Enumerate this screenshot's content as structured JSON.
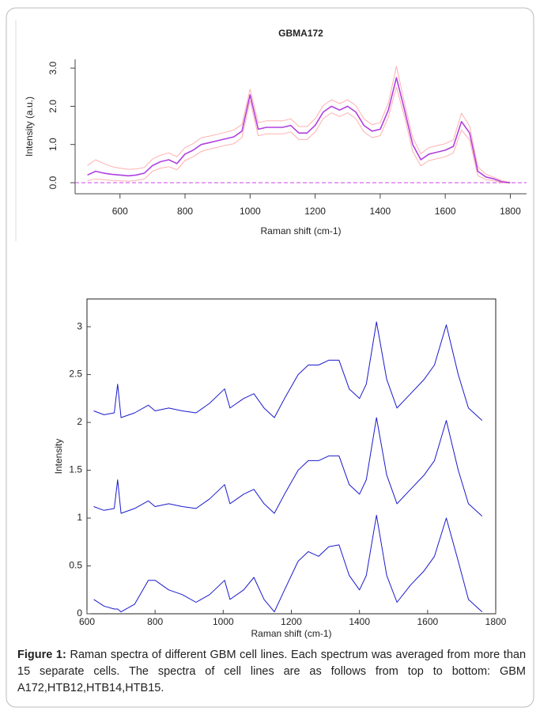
{
  "chart_data": [
    {
      "type": "line",
      "title": "GBMA172",
      "x_label": "Raman shift (cm-1)",
      "y_label": "Intensity (a.u.)",
      "x": [
        500,
        525,
        550,
        575,
        600,
        625,
        650,
        675,
        700,
        725,
        750,
        775,
        800,
        825,
        850,
        875,
        900,
        925,
        950,
        975,
        1000,
        1025,
        1050,
        1075,
        1100,
        1125,
        1150,
        1175,
        1200,
        1225,
        1250,
        1275,
        1300,
        1325,
        1350,
        1375,
        1400,
        1425,
        1450,
        1475,
        1500,
        1525,
        1550,
        1575,
        1600,
        1625,
        1650,
        1675,
        1700,
        1725,
        1750,
        1775,
        1800
      ],
      "series": [
        {
          "color": "#ffb0b0",
          "values": [
            0.45,
            0.6,
            0.5,
            0.42,
            0.38,
            0.35,
            0.36,
            0.4,
            0.62,
            0.72,
            0.78,
            0.68,
            0.92,
            1.02,
            1.18,
            1.22,
            1.27,
            1.32,
            1.38,
            1.52,
            2.45,
            1.57,
            1.62,
            1.62,
            1.62,
            1.67,
            1.47,
            1.47,
            1.67,
            2.02,
            2.17,
            2.07,
            2.17,
            2.02,
            1.67,
            1.52,
            1.57,
            2.08,
            3.05,
            2.08,
            1.18,
            0.76,
            0.92,
            0.97,
            1.02,
            1.12,
            1.82,
            1.48,
            0.42,
            0.22,
            0.14,
            0.05,
            0.01
          ]
        },
        {
          "color": "#ffb0b0",
          "values": [
            0.05,
            0.1,
            0.08,
            0.06,
            0.05,
            0.04,
            0.06,
            0.1,
            0.3,
            0.38,
            0.42,
            0.34,
            0.58,
            0.68,
            0.82,
            0.88,
            0.93,
            0.98,
            1.02,
            1.18,
            2.15,
            1.23,
            1.28,
            1.28,
            1.28,
            1.33,
            1.13,
            1.13,
            1.33,
            1.68,
            1.83,
            1.73,
            1.83,
            1.68,
            1.33,
            1.18,
            1.23,
            1.72,
            2.5,
            1.72,
            0.82,
            0.44,
            0.58,
            0.63,
            0.68,
            0.78,
            1.38,
            1.12,
            0.18,
            0.08,
            0.05,
            0.0,
            -0.01
          ]
        },
        {
          "color": "#b040e0",
          "values": [
            0.2,
            0.3,
            0.25,
            0.22,
            0.2,
            0.18,
            0.2,
            0.25,
            0.45,
            0.55,
            0.6,
            0.5,
            0.75,
            0.85,
            1.0,
            1.05,
            1.1,
            1.15,
            1.2,
            1.35,
            2.3,
            1.4,
            1.45,
            1.45,
            1.45,
            1.5,
            1.3,
            1.3,
            1.5,
            1.85,
            2.0,
            1.9,
            2.0,
            1.85,
            1.5,
            1.35,
            1.4,
            1.9,
            2.75,
            1.9,
            1.0,
            0.6,
            0.75,
            0.8,
            0.85,
            0.95,
            1.6,
            1.3,
            0.3,
            0.15,
            0.1,
            0.02,
            0.0
          ]
        }
      ],
      "reference_line": {
        "value": 0,
        "color": "#cc44ee"
      },
      "xlim": [
        462,
        1850
      ],
      "ylim": [
        -0.29,
        3.23
      ],
      "xticks": [
        600,
        800,
        1000,
        1200,
        1400,
        1600,
        1800
      ],
      "yticks": [
        {
          "value": 0,
          "label": "0.0"
        },
        {
          "value": 1,
          "label": "1.0"
        },
        {
          "value": 2,
          "label": "2.0"
        },
        {
          "value": 3,
          "label": "3.0"
        }
      ]
    },
    {
      "type": "line",
      "x_label": "Raman shift (cm-1)",
      "y_label": "Intensity",
      "x": [
        620,
        650,
        680,
        690,
        700,
        740,
        780,
        800,
        840,
        880,
        920,
        960,
        1004,
        1020,
        1060,
        1090,
        1120,
        1150,
        1180,
        1220,
        1250,
        1280,
        1310,
        1340,
        1370,
        1400,
        1420,
        1450,
        1480,
        1510,
        1550,
        1590,
        1620,
        1655,
        1690,
        1720,
        1760
      ],
      "series": [
        {
          "color": "#1a1acc",
          "values": [
            2.12,
            2.08,
            2.1,
            2.4,
            2.05,
            2.1,
            2.18,
            2.12,
            2.15,
            2.12,
            2.1,
            2.2,
            2.35,
            2.15,
            2.25,
            2.3,
            2.15,
            2.05,
            2.25,
            2.5,
            2.6,
            2.6,
            2.65,
            2.65,
            2.35,
            2.25,
            2.4,
            3.05,
            2.45,
            2.15,
            2.3,
            2.45,
            2.6,
            3.02,
            2.5,
            2.15,
            2.02
          ]
        },
        {
          "color": "#1a1acc",
          "values": [
            1.12,
            1.08,
            1.1,
            1.4,
            1.05,
            1.1,
            1.18,
            1.12,
            1.15,
            1.12,
            1.1,
            1.2,
            1.35,
            1.15,
            1.25,
            1.3,
            1.15,
            1.05,
            1.25,
            1.5,
            1.6,
            1.6,
            1.65,
            1.65,
            1.35,
            1.25,
            1.4,
            2.05,
            1.45,
            1.15,
            1.3,
            1.45,
            1.6,
            2.02,
            1.5,
            1.15,
            1.02
          ]
        },
        {
          "color": "#1a1acc",
          "values": [
            0.15,
            0.08,
            0.05,
            0.05,
            0.02,
            0.1,
            0.35,
            0.35,
            0.25,
            0.2,
            0.12,
            0.2,
            0.35,
            0.15,
            0.25,
            0.38,
            0.15,
            0.02,
            0.25,
            0.55,
            0.65,
            0.6,
            0.7,
            0.72,
            0.4,
            0.25,
            0.4,
            1.03,
            0.4,
            0.12,
            0.3,
            0.45,
            0.6,
            1.0,
            0.55,
            0.15,
            0.02
          ]
        }
      ],
      "xlim": [
        600,
        1800
      ],
      "ylim": [
        0,
        3.29
      ],
      "xticks": [
        600,
        800,
        1000,
        1200,
        1400,
        1600,
        1800
      ],
      "yticks": [
        0,
        0.5,
        1,
        1.5,
        2,
        2.5,
        3
      ]
    }
  ],
  "caption": {
    "label": "Figure 1:",
    "text": "Raman spectra of different GBM cell lines. Each spectrum was averaged from more than 15 separate cells. The spectra of cell lines are as follows from top to bottom: GBM A172,HTB12,HTB14,HTB15."
  }
}
